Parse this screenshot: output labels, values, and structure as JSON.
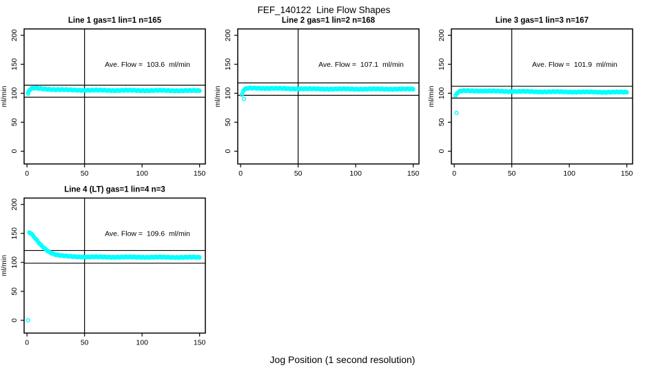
{
  "title": "FEF_140122  Line Flow Shapes",
  "xlabel": "Jog Position (1 second resolution)",
  "ylabel": "ml/min",
  "colors": {
    "points": "#00ffff",
    "axis": "#000000",
    "text": "#000000",
    "background": "#ffffff"
  },
  "axes": {
    "x_ticks": [
      0,
      50,
      100,
      150
    ],
    "y_ticks": [
      0,
      50,
      100,
      150,
      200
    ],
    "x_range": [
      0,
      150
    ],
    "y_range": [
      0,
      200
    ],
    "vline_x": 50,
    "grid": false,
    "marker": "open-circle"
  },
  "chart_data": [
    {
      "type": "scatter",
      "title": "Line 1 gas=1 lin=1 n=165",
      "n": 165,
      "ave_flow": 103.6,
      "ave_flow_label": "Ave. Flow =  103.6  ml/min",
      "hline_hi": 114.0,
      "hline_lo": 93.2,
      "band": [
        [
          1,
          101
        ],
        [
          2,
          105
        ],
        [
          4,
          108
        ],
        [
          7,
          108.5
        ],
        [
          12,
          108
        ],
        [
          18,
          107.2
        ],
        [
          25,
          106.5
        ],
        [
          35,
          105.8
        ],
        [
          50,
          105.3
        ],
        [
          70,
          105
        ],
        [
          100,
          104.8
        ],
        [
          130,
          104.6
        ],
        [
          150,
          104.5
        ]
      ],
      "outliers": [
        [
          1,
          99
        ]
      ]
    },
    {
      "type": "scatter",
      "title": "Line 2 gas=1 lin=2 n=168",
      "n": 168,
      "ave_flow": 107.1,
      "ave_flow_label": "Ave. Flow =  107.1  ml/min",
      "hline_hi": 117.8,
      "hline_lo": 96.4,
      "band": [
        [
          1,
          97
        ],
        [
          2,
          103
        ],
        [
          3,
          106
        ],
        [
          5,
          107.8
        ],
        [
          8,
          108.6
        ],
        [
          15,
          108.8
        ],
        [
          25,
          108.5
        ],
        [
          40,
          108
        ],
        [
          60,
          107.6
        ],
        [
          80,
          107.4
        ],
        [
          100,
          107.3
        ],
        [
          125,
          107.2
        ],
        [
          150,
          107.2
        ]
      ],
      "outliers": [
        [
          3,
          90
        ]
      ]
    },
    {
      "type": "scatter",
      "title": "Line 3 gas=1 lin=3 n=167",
      "n": 167,
      "ave_flow": 101.9,
      "ave_flow_label": "Ave. Flow =  101.9  ml/min",
      "hline_hi": 112.1,
      "hline_lo": 91.7,
      "band": [
        [
          1,
          95.5
        ],
        [
          2,
          99
        ],
        [
          4,
          102.5
        ],
        [
          7,
          104
        ],
        [
          12,
          104.3
        ],
        [
          20,
          104.2
        ],
        [
          30,
          103.8
        ],
        [
          45,
          103.3
        ],
        [
          60,
          103
        ],
        [
          80,
          102.6
        ],
        [
          100,
          102.3
        ],
        [
          125,
          102
        ],
        [
          150,
          101.8
        ]
      ],
      "outliers": [
        [
          2,
          66
        ]
      ]
    },
    {
      "type": "scatter",
      "title": "Line 4 (LT) gas=1 lin=4 n=3",
      "n": 3,
      "ave_flow": 109.6,
      "ave_flow_label": "Ave. Flow =  109.6  ml/min",
      "hline_hi": 120.6,
      "hline_lo": 98.6,
      "band": [
        [
          2,
          151.5
        ],
        [
          3,
          150.5
        ],
        [
          4,
          148.5
        ],
        [
          5,
          146.5
        ],
        [
          6,
          144
        ],
        [
          8,
          139
        ],
        [
          10,
          134.5
        ],
        [
          12,
          130
        ],
        [
          14,
          126.5
        ],
        [
          16,
          123
        ],
        [
          18,
          120
        ],
        [
          20,
          117.5
        ],
        [
          23,
          114.8
        ],
        [
          26,
          113
        ],
        [
          30,
          111.5
        ],
        [
          35,
          110.5
        ],
        [
          40,
          110
        ],
        [
          50,
          109.5
        ],
        [
          70,
          109.2
        ],
        [
          100,
          109
        ],
        [
          125,
          108.8
        ],
        [
          150,
          108.7
        ]
      ],
      "outliers": [
        [
          1,
          0
        ]
      ]
    }
  ]
}
